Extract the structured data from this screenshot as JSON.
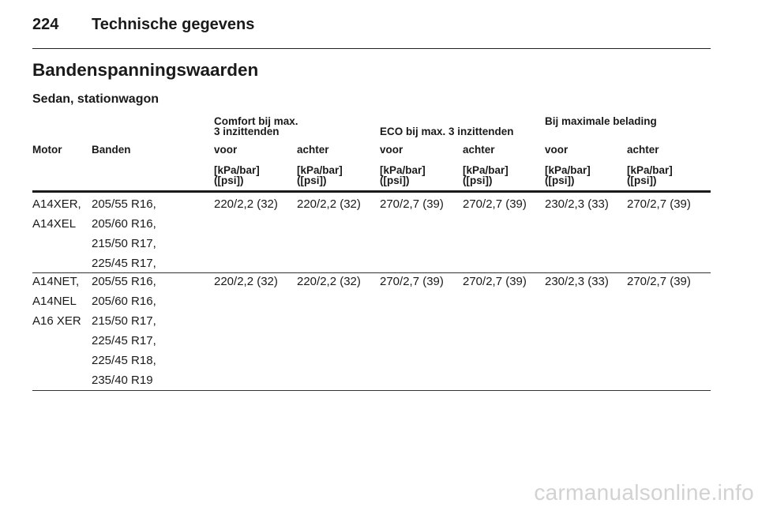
{
  "page": {
    "number": "224",
    "section": "Technische gegevens"
  },
  "title": "Bandenspanningswaarden",
  "subtitle": "Sedan, stationwagon",
  "table": {
    "group_headers": {
      "comfort": [
        "Comfort bij max.",
        "3 inzittenden"
      ],
      "eco": "ECO bij max. 3 inzittenden",
      "max": "Bij maximale belading"
    },
    "columns": [
      "Motor",
      "Banden",
      "voor",
      "achter",
      "voor",
      "achter",
      "voor",
      "achter"
    ],
    "unit_label": [
      "[kPa/bar]",
      "([psi])"
    ],
    "rows": [
      {
        "motor": [
          "A14XER,",
          "A14XEL"
        ],
        "tyres": [
          "205/55 R16,",
          "205/60 R16,",
          "215/50 R17,",
          "225/45 R17,"
        ],
        "values": [
          "220/2,2 (32)",
          "220/2,2 (32)",
          "270/2,7 (39)",
          "270/2,7 (39)",
          "230/2,3 (33)",
          "270/2,7 (39)"
        ]
      },
      {
        "motor": [
          "A14NET,",
          "A14NEL",
          "A16 XER"
        ],
        "tyres": [
          "205/55 R16,",
          "205/60 R16,",
          "215/50 R17,",
          "225/45 R17,",
          "225/45 R18,",
          "235/40 R19"
        ],
        "values": [
          "220/2,2 (32)",
          "220/2,2 (32)",
          "270/2,7 (39)",
          "270/2,7 (39)",
          "230/2,3 (33)",
          "270/2,7 (39)"
        ]
      }
    ]
  },
  "watermark": "carmanualsonline.info"
}
